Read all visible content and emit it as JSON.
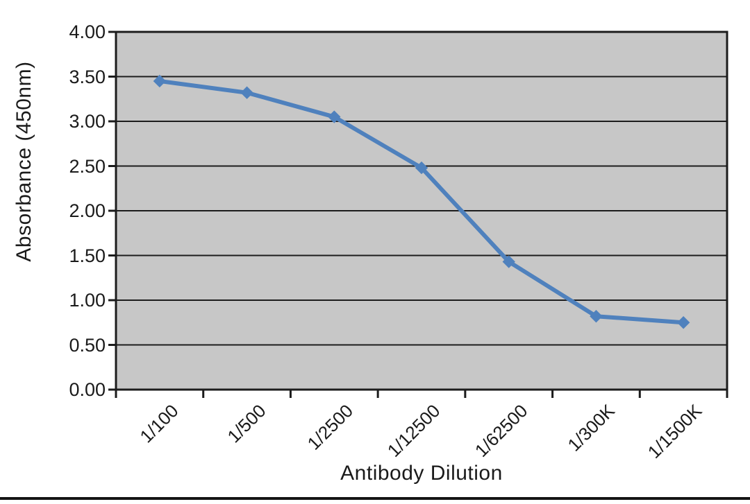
{
  "chart_data": {
    "type": "line",
    "title": "",
    "xlabel": "Antibody Dilution",
    "ylabel": "Absorbance (450nm)",
    "categories": [
      "1/100",
      "1/500",
      "1/2500",
      "1/12500",
      "1/62500",
      "1/300K",
      "1/1500K"
    ],
    "series": [
      {
        "name": "Absorbance (450nm)",
        "values": [
          3.45,
          3.32,
          3.05,
          2.48,
          1.43,
          0.82,
          0.75
        ]
      }
    ],
    "ylim": [
      0,
      4
    ],
    "ytick_step": 0.5,
    "ytick_labels": [
      "0.00",
      "0.50",
      "1.00",
      "1.50",
      "2.00",
      "2.50",
      "3.00",
      "3.50",
      "4.00"
    ],
    "grid": true,
    "legend": "none",
    "marker": "diamond",
    "colors": {
      "line": "#4f81bd",
      "plot_bg": "#c7c7c7",
      "grid": "#1c1c1c",
      "axis": "#1c1c1c",
      "text": "#1a1a1a",
      "page_bg": "#ffffff",
      "bottom_rule": "#141414"
    }
  }
}
